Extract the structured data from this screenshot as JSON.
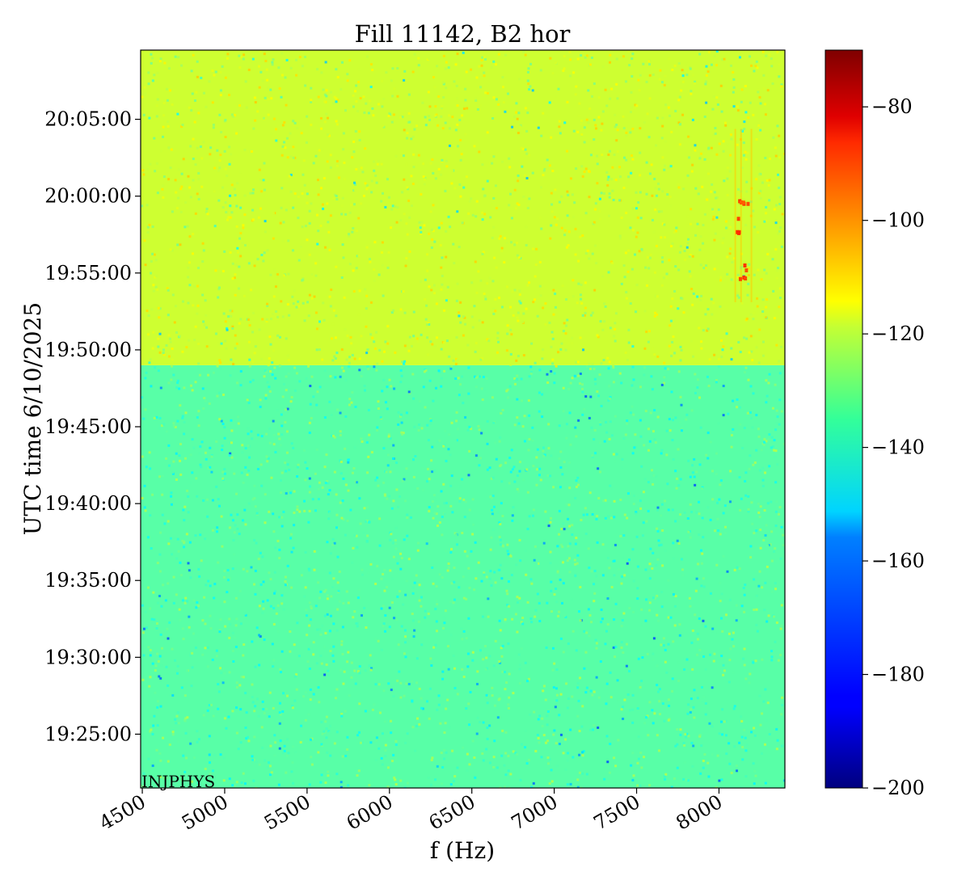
{
  "chart_data": {
    "type": "heatmap",
    "title": "Fill 11142, B2 hor",
    "xlabel": "f (Hz)",
    "ylabel": "UTC time 6/10/2025",
    "x_ticks": [
      {
        "value": 4500,
        "label": "4500"
      },
      {
        "value": 5000,
        "label": "5000"
      },
      {
        "value": 5500,
        "label": "5500"
      },
      {
        "value": 6000,
        "label": "6000"
      },
      {
        "value": 6500,
        "label": "6500"
      },
      {
        "value": 7000,
        "label": "7000"
      },
      {
        "value": 7500,
        "label": "7500"
      },
      {
        "value": 8000,
        "label": "8000"
      }
    ],
    "xlim": [
      4490,
      8400
    ],
    "y_ticks": [
      {
        "label": "19:25:00"
      },
      {
        "label": "19:30:00"
      },
      {
        "label": "19:35:00"
      },
      {
        "label": "19:40:00"
      },
      {
        "label": "19:45:00"
      },
      {
        "label": "19:50:00"
      },
      {
        "label": "19:55:00"
      },
      {
        "label": "20:00:00"
      },
      {
        "label": "20:05:00"
      }
    ],
    "ylim": [
      "19:21:30",
      "20:09:30"
    ],
    "colorbar": {
      "colormap": "jet",
      "range": [
        -200,
        -70
      ],
      "ticks": [
        {
          "value": -80,
          "label": "−80"
        },
        {
          "value": -100,
          "label": "−100"
        },
        {
          "value": -120,
          "label": "−120"
        },
        {
          "value": -140,
          "label": "−140"
        },
        {
          "value": -160,
          "label": "−160"
        },
        {
          "value": -180,
          "label": "−180"
        },
        {
          "value": -200,
          "label": "−200"
        }
      ]
    },
    "regions": [
      {
        "time_start": "19:21:30",
        "time_end": "19:49:00",
        "level": -140
      },
      {
        "time_start": "19:49:00",
        "time_end": "20:09:30",
        "level": -125
      }
    ],
    "features": [
      {
        "f_start": 8080,
        "f_end": 8220,
        "time_start": "19:49:00",
        "time_end": "20:09:30",
        "level": -100
      }
    ],
    "annotation": "INJPHYS"
  }
}
